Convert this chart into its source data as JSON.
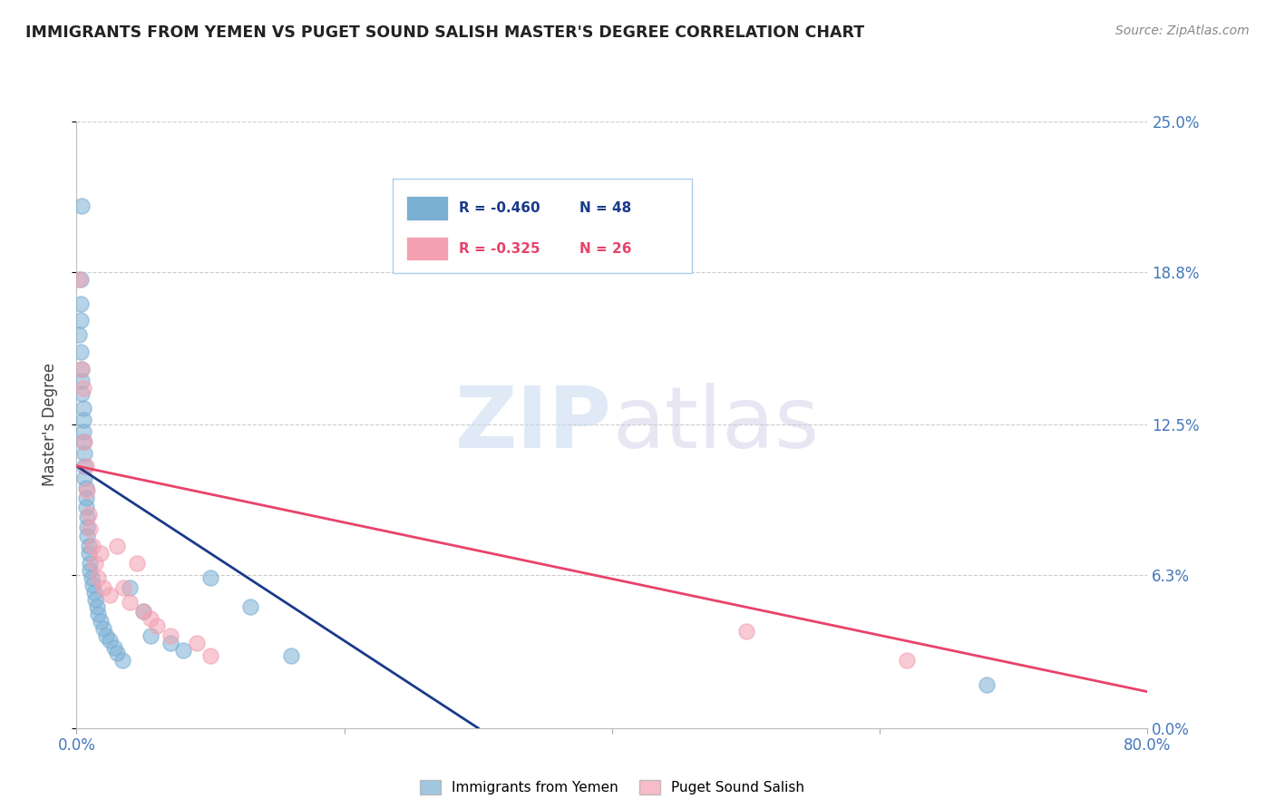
{
  "title": "IMMIGRANTS FROM YEMEN VS PUGET SOUND SALISH MASTER'S DEGREE CORRELATION CHART",
  "source": "Source: ZipAtlas.com",
  "ylabel": "Master's Degree",
  "xlim": [
    0.0,
    0.8
  ],
  "ylim": [
    0.0,
    0.25
  ],
  "yticks": [
    0.0,
    0.063,
    0.125,
    0.188,
    0.25
  ],
  "ytick_labels": [
    "0.0%",
    "6.3%",
    "12.5%",
    "18.8%",
    "25.0%"
  ],
  "xticks": [
    0.0,
    0.2,
    0.4,
    0.6,
    0.8
  ],
  "xtick_labels": [
    "0.0%",
    "",
    "",
    "",
    "80.0%"
  ],
  "legend_r1": "R = -0.460",
  "legend_n1": "N = 48",
  "legend_r2": "R = -0.325",
  "legend_n2": "N = 26",
  "watermark_zip": "ZIP",
  "watermark_atlas": "atlas",
  "blue_color": "#7BAFD4",
  "pink_color": "#F4A0B0",
  "line_blue": "#1A3A8A",
  "line_pink": "#E8436A",
  "background_color": "#FFFFFF",
  "grid_color": "#CCCCCC",
  "title_color": "#222222",
  "axis_label_color": "#444444",
  "tick_label_color": "#4477BB",
  "blue_scatter": [
    [
      0.004,
      0.215
    ],
    [
      0.003,
      0.185
    ],
    [
      0.003,
      0.175
    ],
    [
      0.003,
      0.168
    ],
    [
      0.002,
      0.162
    ],
    [
      0.003,
      0.155
    ],
    [
      0.004,
      0.148
    ],
    [
      0.004,
      0.143
    ],
    [
      0.004,
      0.138
    ],
    [
      0.005,
      0.132
    ],
    [
      0.005,
      0.127
    ],
    [
      0.005,
      0.122
    ],
    [
      0.005,
      0.118
    ],
    [
      0.006,
      0.113
    ],
    [
      0.006,
      0.108
    ],
    [
      0.006,
      0.103
    ],
    [
      0.007,
      0.099
    ],
    [
      0.007,
      0.095
    ],
    [
      0.007,
      0.091
    ],
    [
      0.008,
      0.087
    ],
    [
      0.008,
      0.083
    ],
    [
      0.008,
      0.079
    ],
    [
      0.009,
      0.075
    ],
    [
      0.009,
      0.072
    ],
    [
      0.01,
      0.068
    ],
    [
      0.01,
      0.065
    ],
    [
      0.011,
      0.062
    ],
    [
      0.012,
      0.059
    ],
    [
      0.013,
      0.056
    ],
    [
      0.014,
      0.053
    ],
    [
      0.015,
      0.05
    ],
    [
      0.016,
      0.047
    ],
    [
      0.018,
      0.044
    ],
    [
      0.02,
      0.041
    ],
    [
      0.022,
      0.038
    ],
    [
      0.025,
      0.036
    ],
    [
      0.028,
      0.033
    ],
    [
      0.03,
      0.031
    ],
    [
      0.034,
      0.028
    ],
    [
      0.04,
      0.058
    ],
    [
      0.05,
      0.048
    ],
    [
      0.055,
      0.038
    ],
    [
      0.07,
      0.035
    ],
    [
      0.08,
      0.032
    ],
    [
      0.1,
      0.062
    ],
    [
      0.13,
      0.05
    ],
    [
      0.16,
      0.03
    ],
    [
      0.68,
      0.018
    ]
  ],
  "pink_scatter": [
    [
      0.002,
      0.185
    ],
    [
      0.004,
      0.148
    ],
    [
      0.005,
      0.14
    ],
    [
      0.006,
      0.118
    ],
    [
      0.007,
      0.108
    ],
    [
      0.008,
      0.098
    ],
    [
      0.009,
      0.088
    ],
    [
      0.01,
      0.082
    ],
    [
      0.012,
      0.075
    ],
    [
      0.014,
      0.068
    ],
    [
      0.016,
      0.062
    ],
    [
      0.018,
      0.072
    ],
    [
      0.02,
      0.058
    ],
    [
      0.025,
      0.055
    ],
    [
      0.03,
      0.075
    ],
    [
      0.035,
      0.058
    ],
    [
      0.04,
      0.052
    ],
    [
      0.045,
      0.068
    ],
    [
      0.05,
      0.048
    ],
    [
      0.055,
      0.045
    ],
    [
      0.06,
      0.042
    ],
    [
      0.07,
      0.038
    ],
    [
      0.09,
      0.035
    ],
    [
      0.5,
      0.04
    ],
    [
      0.62,
      0.028
    ],
    [
      0.1,
      0.03
    ]
  ],
  "blue_line_x": [
    0.0,
    0.3
  ],
  "blue_line_y": [
    0.108,
    0.0
  ],
  "pink_line_x": [
    0.0,
    0.8
  ],
  "pink_line_y": [
    0.108,
    0.015
  ]
}
